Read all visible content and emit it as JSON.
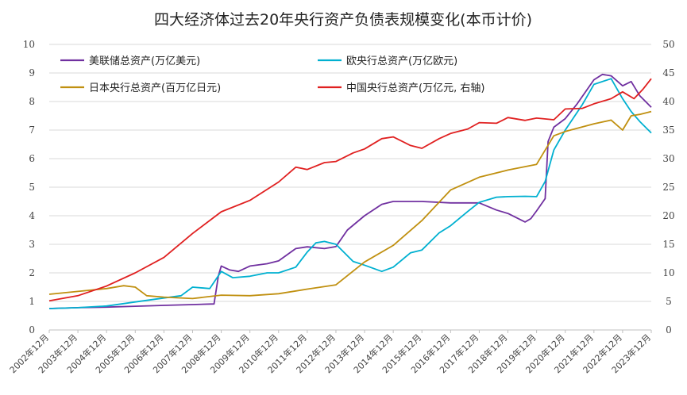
{
  "chart_data": {
    "type": "line",
    "title": "四大经济体过去20年央行资产负债表规模变化(本币计价)",
    "x": [
      "2002年12月",
      "2003年12月",
      "2004年12月",
      "2005年12月",
      "2006年12月",
      "2007年12月",
      "2008年12月",
      "2009年12月",
      "2010年12月",
      "2011年12月",
      "2012年12月",
      "2013年12月",
      "2014年12月",
      "2015年12月",
      "2016年12月",
      "2017年12月",
      "2018年12月",
      "2019年12月",
      "2020年12月",
      "2021年12月",
      "2022年12月",
      "2023年12月"
    ],
    "ylim_left": [
      0,
      10
    ],
    "ylim_right": [
      0,
      50
    ],
    "yticks_left": [
      0,
      1,
      2,
      3,
      4,
      5,
      6,
      7,
      8,
      9,
      10
    ],
    "yticks_right": [
      0,
      5,
      10,
      15,
      20,
      25,
      30,
      35,
      40,
      45,
      50
    ],
    "grid": true,
    "legend_position": "top-left",
    "series": [
      {
        "name": "美联储总资产(万亿美元)",
        "axis": "left",
        "color": "#7030a0",
        "x": [
          2002.9,
          2003.9,
          2004.9,
          2005.9,
          2006.9,
          2007.9,
          2008.65,
          2008.8,
          2008.9,
          2009.2,
          2009.5,
          2009.9,
          2010.5,
          2010.9,
          2011.5,
          2011.9,
          2012.5,
          2012.9,
          2013.3,
          2013.9,
          2014.5,
          2014.9,
          2015.5,
          2015.9,
          2016.9,
          2017.9,
          2018.5,
          2018.9,
          2019.5,
          2019.7,
          2019.9,
          2020.2,
          2020.3,
          2020.5,
          2020.9,
          2021.3,
          2021.9,
          2022.2,
          2022.5,
          2022.9,
          2023.2,
          2023.5,
          2023.9
        ],
        "values": [
          0.75,
          0.78,
          0.8,
          0.83,
          0.86,
          0.89,
          0.91,
          1.9,
          2.24,
          2.1,
          2.05,
          2.24,
          2.32,
          2.42,
          2.85,
          2.91,
          2.85,
          2.92,
          3.5,
          4.0,
          4.4,
          4.5,
          4.5,
          4.5,
          4.45,
          4.45,
          4.2,
          4.08,
          3.78,
          3.9,
          4.17,
          4.6,
          6.6,
          7.1,
          7.4,
          7.9,
          8.76,
          8.95,
          8.9,
          8.55,
          8.7,
          8.2,
          7.8
        ]
      },
      {
        "name": "欧央行总资产(万亿欧元)",
        "axis": "left",
        "color": "#00b0d0",
        "x": [
          2002.9,
          2003.9,
          2004.9,
          2005.9,
          2006.9,
          2007.5,
          2007.9,
          2008.5,
          2008.9,
          2009.3,
          2009.9,
          2010.5,
          2010.9,
          2011.5,
          2011.9,
          2012.2,
          2012.5,
          2012.9,
          2013.5,
          2013.9,
          2014.5,
          2014.9,
          2015.5,
          2015.9,
          2016.5,
          2016.9,
          2017.5,
          2017.9,
          2018.5,
          2018.9,
          2019.5,
          2019.9,
          2020.2,
          2020.5,
          2020.9,
          2021.5,
          2021.9,
          2022.5,
          2022.9,
          2023.2,
          2023.5,
          2023.9
        ],
        "values": [
          0.75,
          0.78,
          0.84,
          0.98,
          1.12,
          1.2,
          1.5,
          1.45,
          2.05,
          1.83,
          1.88,
          2.0,
          2.0,
          2.2,
          2.73,
          3.05,
          3.1,
          3.0,
          2.4,
          2.27,
          2.05,
          2.2,
          2.7,
          2.8,
          3.4,
          3.65,
          4.15,
          4.47,
          4.65,
          4.67,
          4.68,
          4.67,
          5.2,
          6.3,
          7.0,
          7.9,
          8.6,
          8.8,
          8.1,
          7.65,
          7.3,
          6.9
        ]
      },
      {
        "name": "日本央行总资产(百万亿日元)",
        "axis": "left",
        "color": "#c09010",
        "x": [
          2002.9,
          2003.9,
          2004.9,
          2005.5,
          2005.9,
          2006.3,
          2006.9,
          2007.9,
          2008.9,
          2009.9,
          2010.9,
          2011.9,
          2012.9,
          2013.9,
          2014.9,
          2015.9,
          2016.9,
          2017.9,
          2018.9,
          2019.9,
          2020.5,
          2020.9,
          2021.9,
          2022.5,
          2022.9,
          2023.2,
          2023.5,
          2023.9
        ],
        "values": [
          1.25,
          1.35,
          1.45,
          1.55,
          1.5,
          1.2,
          1.15,
          1.1,
          1.22,
          1.2,
          1.27,
          1.43,
          1.58,
          2.38,
          2.96,
          3.83,
          4.9,
          5.35,
          5.6,
          5.8,
          6.8,
          6.95,
          7.22,
          7.35,
          7.0,
          7.5,
          7.55,
          7.65
        ]
      },
      {
        "name": "中国央行总资产(万亿元, 右轴)",
        "axis": "right",
        "color": "#e02020",
        "x": [
          2002.9,
          2003.9,
          2004.9,
          2005.9,
          2006.9,
          2007.9,
          2008.9,
          2009.9,
          2010.9,
          2011.5,
          2011.9,
          2012.5,
          2012.9,
          2013.5,
          2013.9,
          2014.5,
          2014.9,
          2015.5,
          2015.9,
          2016.5,
          2016.9,
          2017.5,
          2017.9,
          2018.5,
          2018.9,
          2019.5,
          2019.9,
          2020.5,
          2020.9,
          2021.5,
          2021.9,
          2022.5,
          2022.9,
          2023.3,
          2023.6,
          2023.9
        ],
        "values": [
          5.1,
          6.0,
          7.7,
          10.0,
          12.7,
          16.9,
          20.7,
          22.7,
          25.9,
          28.5,
          28.1,
          29.3,
          29.5,
          31.0,
          31.7,
          33.5,
          33.8,
          32.3,
          31.8,
          33.5,
          34.4,
          35.2,
          36.3,
          36.2,
          37.2,
          36.7,
          37.1,
          36.8,
          38.7,
          38.8,
          39.6,
          40.5,
          41.7,
          40.5,
          42.1,
          44.0
        ]
      }
    ]
  }
}
